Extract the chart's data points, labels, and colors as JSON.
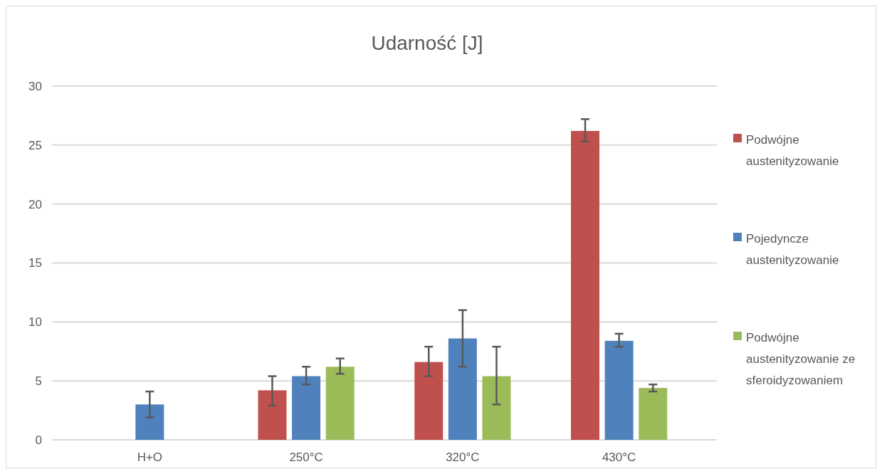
{
  "chart_data": {
    "type": "bar",
    "title": "Udarność [J]",
    "categories": [
      "H+O",
      "250°C",
      "320°C",
      "430°C"
    ],
    "series": [
      {
        "name": "Podwójne austenityzowanie",
        "color": "#c0504d",
        "values": [
          null,
          4.2,
          6.6,
          26.2
        ],
        "errors": [
          null,
          [
            2.9,
            5.4
          ],
          [
            5.4,
            7.9
          ],
          [
            25.3,
            27.2
          ]
        ]
      },
      {
        "name": "Pojedyncze austenityzowanie",
        "color": "#4f81bd",
        "values": [
          3.0,
          5.4,
          8.6,
          8.4
        ],
        "errors": [
          [
            1.9,
            4.1
          ],
          [
            4.7,
            6.2
          ],
          [
            6.2,
            11.0
          ],
          [
            7.9,
            9.0
          ]
        ]
      },
      {
        "name": "Podwójne austenityzowanie ze sferoidyzowaniem",
        "color": "#9bbb59",
        "values": [
          null,
          6.2,
          5.4,
          4.4
        ],
        "errors": [
          null,
          [
            5.6,
            6.9
          ],
          [
            3.0,
            7.9
          ],
          [
            4.1,
            4.7
          ]
        ]
      }
    ],
    "ylim": [
      0,
      30
    ],
    "yticks": [
      0,
      5,
      10,
      15,
      20,
      25,
      30
    ],
    "grid": "y",
    "legend": "right"
  }
}
